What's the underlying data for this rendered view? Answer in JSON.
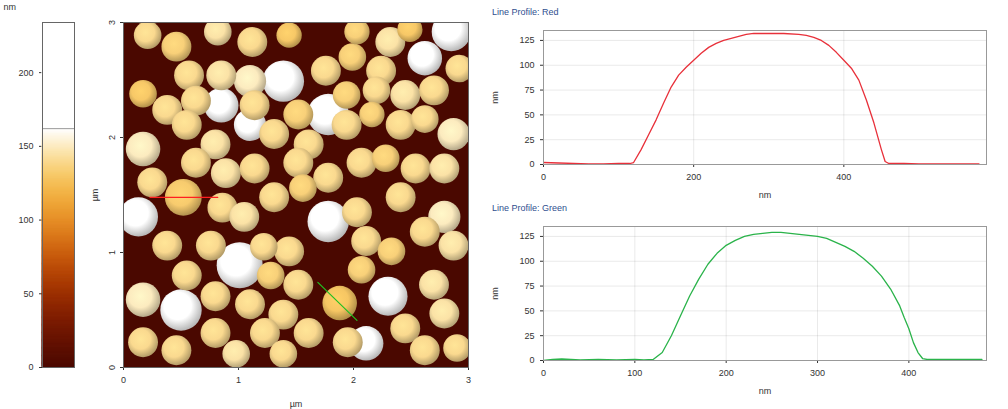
{
  "chart_data": [
    {
      "type": "heatmap",
      "xlabel": "µm",
      "ylabel": "µm",
      "xlim": [
        0,
        3
      ],
      "ylim": [
        0,
        3
      ],
      "xticks": [
        0,
        1,
        2,
        3
      ],
      "yticks": [
        0,
        1,
        2,
        3
      ],
      "colorbar": {
        "label": "nm",
        "lim": [
          0,
          234
        ],
        "ticks": [
          0,
          50,
          100,
          150,
          200
        ],
        "white_point": 162
      },
      "lines": [
        {
          "name": "Red",
          "color": "#ff2020",
          "x": [
            0.23,
            0.82
          ],
          "y": [
            1.48,
            1.48
          ]
        },
        {
          "name": "Green",
          "color": "#22c022",
          "x": [
            1.69,
            2.03
          ],
          "y": [
            0.74,
            0.41
          ]
        }
      ],
      "particles": [
        {
          "x": 0.21,
          "y": 2.89,
          "diameter": 0.24,
          "height": 140
        },
        {
          "x": 0.46,
          "y": 2.79,
          "diameter": 0.26,
          "height": 135
        },
        {
          "x": 0.82,
          "y": 2.92,
          "diameter": 0.24,
          "height": 145
        },
        {
          "x": 1.12,
          "y": 2.83,
          "diameter": 0.26,
          "height": 140
        },
        {
          "x": 1.44,
          "y": 2.89,
          "diameter": 0.22,
          "height": 130
        },
        {
          "x": 2.03,
          "y": 2.92,
          "diameter": 0.22,
          "height": 135
        },
        {
          "x": 2.32,
          "y": 2.83,
          "diameter": 0.26,
          "height": 145
        },
        {
          "x": 2.49,
          "y": 2.94,
          "diameter": 0.22,
          "height": 130
        },
        {
          "x": 2.85,
          "y": 2.92,
          "diameter": 0.34,
          "height": 200
        },
        {
          "x": 0.57,
          "y": 2.54,
          "diameter": 0.26,
          "height": 140
        },
        {
          "x": 0.85,
          "y": 2.54,
          "diameter": 0.26,
          "height": 145
        },
        {
          "x": 1.1,
          "y": 2.49,
          "diameter": 0.28,
          "height": 150
        },
        {
          "x": 1.39,
          "y": 2.49,
          "diameter": 0.36,
          "height": 215
        },
        {
          "x": 1.76,
          "y": 2.58,
          "diameter": 0.26,
          "height": 140
        },
        {
          "x": 1.99,
          "y": 2.7,
          "diameter": 0.24,
          "height": 135
        },
        {
          "x": 2.24,
          "y": 2.58,
          "diameter": 0.26,
          "height": 140
        },
        {
          "x": 2.62,
          "y": 2.69,
          "diameter": 0.3,
          "height": 190
        },
        {
          "x": 2.92,
          "y": 2.6,
          "diameter": 0.24,
          "height": 140
        },
        {
          "x": 0.17,
          "y": 2.38,
          "diameter": 0.24,
          "height": 130
        },
        {
          "x": 0.38,
          "y": 2.24,
          "diameter": 0.26,
          "height": 140
        },
        {
          "x": 0.63,
          "y": 2.32,
          "diameter": 0.26,
          "height": 140
        },
        {
          "x": 0.85,
          "y": 2.28,
          "diameter": 0.3,
          "height": 195
        },
        {
          "x": 1.14,
          "y": 2.28,
          "diameter": 0.26,
          "height": 140
        },
        {
          "x": 1.52,
          "y": 2.2,
          "diameter": 0.26,
          "height": 135
        },
        {
          "x": 1.78,
          "y": 2.2,
          "diameter": 0.36,
          "height": 220
        },
        {
          "x": 1.94,
          "y": 2.37,
          "diameter": 0.24,
          "height": 135
        },
        {
          "x": 2.2,
          "y": 2.41,
          "diameter": 0.24,
          "height": 140
        },
        {
          "x": 2.45,
          "y": 2.37,
          "diameter": 0.26,
          "height": 145
        },
        {
          "x": 2.7,
          "y": 2.41,
          "diameter": 0.26,
          "height": 140
        },
        {
          "x": 0.17,
          "y": 1.9,
          "diameter": 0.3,
          "height": 150
        },
        {
          "x": 0.55,
          "y": 2.11,
          "diameter": 0.26,
          "height": 140
        },
        {
          "x": 0.8,
          "y": 1.94,
          "diameter": 0.26,
          "height": 145
        },
        {
          "x": 1.1,
          "y": 2.11,
          "diameter": 0.28,
          "height": 180
        },
        {
          "x": 1.31,
          "y": 2.03,
          "diameter": 0.26,
          "height": 140
        },
        {
          "x": 1.61,
          "y": 1.94,
          "diameter": 0.26,
          "height": 140
        },
        {
          "x": 1.94,
          "y": 2.11,
          "diameter": 0.26,
          "height": 140
        },
        {
          "x": 2.16,
          "y": 2.2,
          "diameter": 0.22,
          "height": 135
        },
        {
          "x": 2.41,
          "y": 2.11,
          "diameter": 0.26,
          "height": 140
        },
        {
          "x": 2.62,
          "y": 2.16,
          "diameter": 0.24,
          "height": 140
        },
        {
          "x": 2.87,
          "y": 2.03,
          "diameter": 0.28,
          "height": 150
        },
        {
          "x": 0.25,
          "y": 1.61,
          "diameter": 0.26,
          "height": 140
        },
        {
          "x": 0.63,
          "y": 1.78,
          "diameter": 0.26,
          "height": 140
        },
        {
          "x": 0.89,
          "y": 1.69,
          "diameter": 0.26,
          "height": 145
        },
        {
          "x": 1.14,
          "y": 1.73,
          "diameter": 0.26,
          "height": 140
        },
        {
          "x": 1.52,
          "y": 1.78,
          "diameter": 0.26,
          "height": 140
        },
        {
          "x": 1.78,
          "y": 1.65,
          "diameter": 0.26,
          "height": 140
        },
        {
          "x": 2.07,
          "y": 1.78,
          "diameter": 0.26,
          "height": 140
        },
        {
          "x": 2.28,
          "y": 1.82,
          "diameter": 0.24,
          "height": 135
        },
        {
          "x": 2.54,
          "y": 1.73,
          "diameter": 0.26,
          "height": 140
        },
        {
          "x": 2.79,
          "y": 1.73,
          "diameter": 0.26,
          "height": 145
        },
        {
          "x": 0.13,
          "y": 1.31,
          "diameter": 0.34,
          "height": 200
        },
        {
          "x": 0.52,
          "y": 1.48,
          "diameter": 0.32,
          "height": 132
        },
        {
          "x": 0.86,
          "y": 1.39,
          "diameter": 0.26,
          "height": 140
        },
        {
          "x": 1.05,
          "y": 1.31,
          "diameter": 0.26,
          "height": 145
        },
        {
          "x": 1.31,
          "y": 1.48,
          "diameter": 0.26,
          "height": 140
        },
        {
          "x": 1.56,
          "y": 1.56,
          "diameter": 0.24,
          "height": 135
        },
        {
          "x": 1.78,
          "y": 1.27,
          "diameter": 0.36,
          "height": 225
        },
        {
          "x": 2.03,
          "y": 1.35,
          "diameter": 0.26,
          "height": 140
        },
        {
          "x": 2.41,
          "y": 1.48,
          "diameter": 0.26,
          "height": 140
        },
        {
          "x": 2.79,
          "y": 1.31,
          "diameter": 0.28,
          "height": 150
        },
        {
          "x": 0.38,
          "y": 1.06,
          "diameter": 0.26,
          "height": 140
        },
        {
          "x": 0.76,
          "y": 1.06,
          "diameter": 0.26,
          "height": 140
        },
        {
          "x": 1.01,
          "y": 0.89,
          "diameter": 0.4,
          "height": 230
        },
        {
          "x": 1.22,
          "y": 1.05,
          "diameter": 0.24,
          "height": 140
        },
        {
          "x": 1.44,
          "y": 1.01,
          "diameter": 0.26,
          "height": 140
        },
        {
          "x": 2.11,
          "y": 1.1,
          "diameter": 0.26,
          "height": 140
        },
        {
          "x": 2.33,
          "y": 1.01,
          "diameter": 0.24,
          "height": 135
        },
        {
          "x": 2.07,
          "y": 0.85,
          "diameter": 0.24,
          "height": 135
        },
        {
          "x": 2.62,
          "y": 1.18,
          "diameter": 0.26,
          "height": 140
        },
        {
          "x": 2.87,
          "y": 1.06,
          "diameter": 0.26,
          "height": 145
        },
        {
          "x": 0.55,
          "y": 0.8,
          "diameter": 0.26,
          "height": 140
        },
        {
          "x": 0.8,
          "y": 0.62,
          "diameter": 0.26,
          "height": 140
        },
        {
          "x": 1.28,
          "y": 0.8,
          "diameter": 0.24,
          "height": 135
        },
        {
          "x": 1.52,
          "y": 0.72,
          "diameter": 0.26,
          "height": 140
        },
        {
          "x": 1.88,
          "y": 0.56,
          "diameter": 0.3,
          "height": 129
        },
        {
          "x": 2.3,
          "y": 0.62,
          "diameter": 0.34,
          "height": 210
        },
        {
          "x": 2.7,
          "y": 0.72,
          "diameter": 0.26,
          "height": 145
        },
        {
          "x": 0.17,
          "y": 0.59,
          "diameter": 0.3,
          "height": 150
        },
        {
          "x": 0.5,
          "y": 0.5,
          "diameter": 0.36,
          "height": 190
        },
        {
          "x": 1.1,
          "y": 0.55,
          "diameter": 0.26,
          "height": 140
        },
        {
          "x": 1.39,
          "y": 0.46,
          "diameter": 0.26,
          "height": 140
        },
        {
          "x": 1.61,
          "y": 0.3,
          "diameter": 0.26,
          "height": 140
        },
        {
          "x": 1.95,
          "y": 0.22,
          "diameter": 0.26,
          "height": 140
        },
        {
          "x": 2.45,
          "y": 0.34,
          "diameter": 0.26,
          "height": 140
        },
        {
          "x": 2.79,
          "y": 0.47,
          "diameter": 0.26,
          "height": 145
        },
        {
          "x": 0.17,
          "y": 0.22,
          "diameter": 0.26,
          "height": 140
        },
        {
          "x": 0.46,
          "y": 0.15,
          "diameter": 0.26,
          "height": 140
        },
        {
          "x": 0.8,
          "y": 0.3,
          "diameter": 0.26,
          "height": 140
        },
        {
          "x": 0.98,
          "y": 0.12,
          "diameter": 0.24,
          "height": 145
        },
        {
          "x": 1.23,
          "y": 0.3,
          "diameter": 0.26,
          "height": 140
        },
        {
          "x": 1.39,
          "y": 0.12,
          "diameter": 0.24,
          "height": 140
        },
        {
          "x": 2.11,
          "y": 0.21,
          "diameter": 0.3,
          "height": 200
        },
        {
          "x": 2.62,
          "y": 0.15,
          "diameter": 0.26,
          "height": 140
        },
        {
          "x": 2.9,
          "y": 0.17,
          "diameter": 0.24,
          "height": 140
        }
      ]
    },
    {
      "type": "line",
      "title": "Line Profile: Red",
      "xlabel": "nm",
      "ylabel": "nm",
      "xlim": [
        0,
        590
      ],
      "ylim": [
        0,
        135
      ],
      "xticks": [
        0,
        200,
        400
      ],
      "yticks": [
        0,
        25,
        50,
        75,
        100,
        125
      ],
      "grid": true,
      "x": [
        0,
        20,
        40,
        60,
        80,
        100,
        115,
        120,
        130,
        140,
        150,
        160,
        170,
        180,
        190,
        200,
        210,
        220,
        230,
        240,
        250,
        260,
        270,
        280,
        300,
        320,
        340,
        350,
        360,
        370,
        380,
        390,
        400,
        410,
        420,
        430,
        440,
        450,
        455,
        460,
        480,
        500,
        520,
        540,
        560,
        580
      ],
      "series": [
        {
          "name": "Red",
          "color": "#e8303a",
          "values": [
            2,
            1.5,
            1,
            0.5,
            0.5,
            1,
            1,
            2,
            15,
            30,
            45,
            62,
            78,
            90,
            98,
            105,
            112,
            118,
            122,
            125,
            127,
            129,
            131,
            132,
            132,
            132,
            131,
            130,
            128,
            125,
            120,
            113,
            105,
            97,
            85,
            65,
            42,
            15,
            3,
            1,
            1,
            0.5,
            0.5,
            0.5,
            0.5,
            0.5
          ]
        }
      ]
    },
    {
      "type": "line",
      "title": "Line Profile: Green",
      "xlabel": "nm",
      "ylabel": "nm",
      "xlim": [
        0,
        485
      ],
      "ylim": [
        0,
        135
      ],
      "xticks": [
        0,
        100,
        200,
        300,
        400
      ],
      "yticks": [
        0,
        25,
        50,
        75,
        100,
        125
      ],
      "grid": true,
      "x": [
        0,
        10,
        20,
        40,
        60,
        80,
        100,
        110,
        120,
        130,
        140,
        150,
        160,
        170,
        180,
        190,
        200,
        210,
        220,
        230,
        240,
        250,
        260,
        270,
        280,
        290,
        300,
        310,
        320,
        330,
        340,
        350,
        360,
        370,
        380,
        390,
        395,
        400,
        405,
        410,
        415,
        420,
        440,
        460,
        480
      ],
      "series": [
        {
          "name": "Green",
          "color": "#2ab34a",
          "values": [
            0,
            1,
            1.5,
            0.5,
            1,
            0.5,
            1,
            0.5,
            1,
            8,
            25,
            45,
            65,
            82,
            97,
            108,
            116,
            121,
            125,
            127,
            128,
            129,
            129,
            128,
            127,
            126,
            125,
            123,
            119,
            115,
            110,
            103,
            95,
            85,
            72,
            55,
            43,
            32,
            18,
            8,
            2,
            1,
            1,
            1,
            1
          ]
        }
      ]
    }
  ]
}
